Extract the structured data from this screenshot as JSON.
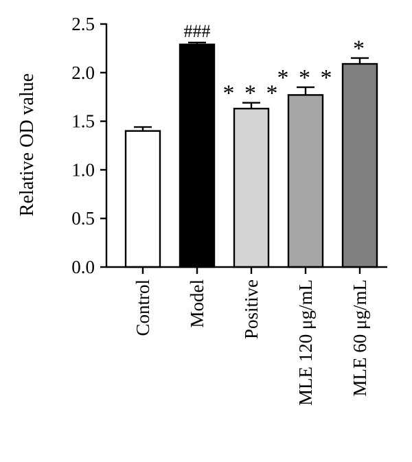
{
  "chart_data": {
    "type": "bar",
    "ylabel": "Relative OD value",
    "xlabel": "",
    "ylim": [
      0,
      2.5
    ],
    "yticks": [
      "0.0",
      "0.5",
      "1.0",
      "1.5",
      "2.0",
      "2.5"
    ],
    "categories": [
      "Control",
      "Model",
      "Positive",
      "MLE 120 μg/mL",
      "MLE 60 μg/mL"
    ],
    "values": [
      1.4,
      2.29,
      1.63,
      1.77,
      2.09
    ],
    "errors": [
      0.04,
      0.02,
      0.06,
      0.08,
      0.06
    ],
    "significance": [
      "",
      "###",
      "* * *",
      "* * *",
      "*"
    ],
    "colors": [
      "#ffffff",
      "#000000",
      "#d4d4d4",
      "#a6a6a6",
      "#808080"
    ],
    "grid": false
  }
}
